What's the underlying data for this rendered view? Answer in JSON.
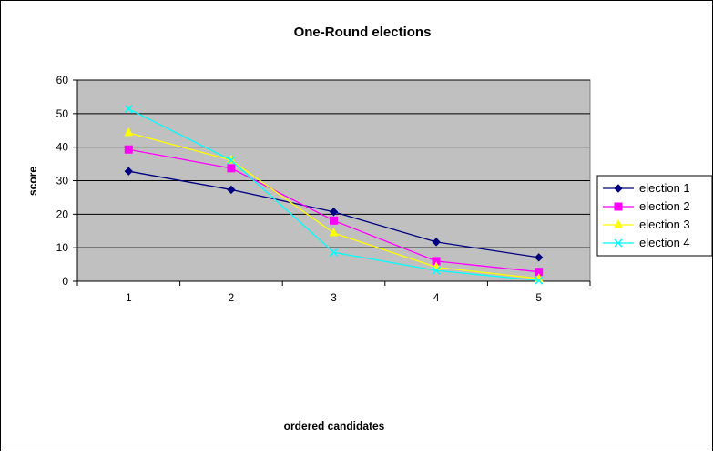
{
  "chart_data": {
    "type": "line",
    "title": "One-Round elections",
    "xlabel": "ordered candidates",
    "ylabel": "score",
    "x": [
      1,
      2,
      3,
      4,
      5
    ],
    "ylim": [
      0,
      60
    ],
    "yticks": [
      0,
      10,
      20,
      30,
      40,
      50,
      60
    ],
    "grid": true,
    "legend_position": "right",
    "plot_background": "#c0c0c0",
    "series": [
      {
        "name": "election 1",
        "color": "#000080",
        "marker": "diamond",
        "values": [
          32.8,
          27.3,
          20.7,
          11.7,
          7.1
        ]
      },
      {
        "name": "election 2",
        "color": "#ff00ff",
        "marker": "square",
        "values": [
          39.3,
          33.7,
          18.1,
          6.0,
          2.8
        ]
      },
      {
        "name": "election 3",
        "color": "#ffff00",
        "marker": "triangle",
        "values": [
          44.3,
          36.1,
          14.4,
          4.2,
          0.8
        ]
      },
      {
        "name": "election 4",
        "color": "#00ffff",
        "marker": "x",
        "values": [
          51.4,
          36.1,
          8.6,
          3.2,
          0.2
        ]
      }
    ]
  }
}
